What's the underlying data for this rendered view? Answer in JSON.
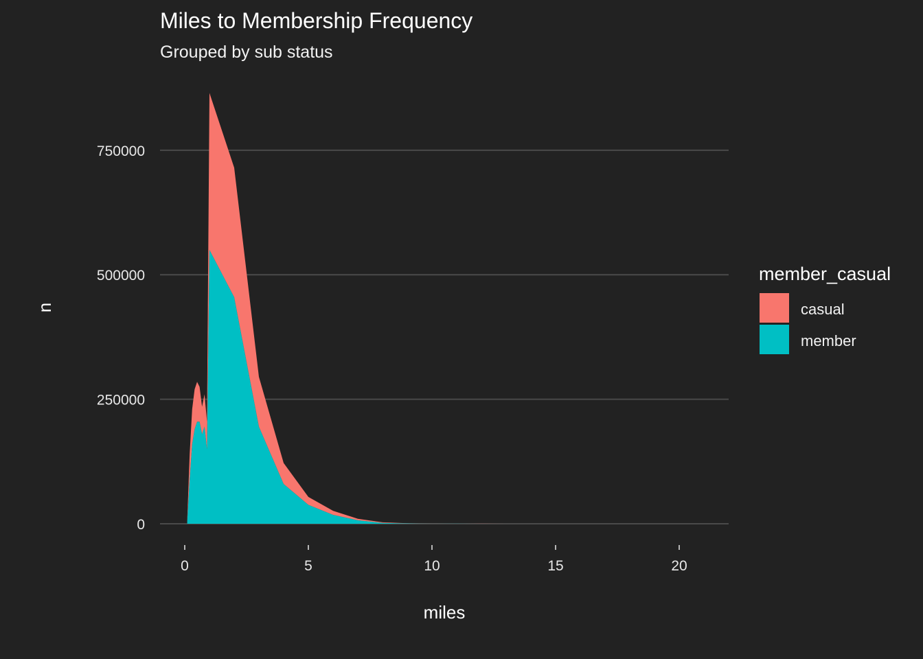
{
  "chart_data": {
    "type": "area",
    "stacked": true,
    "title": "Miles to Membership Frequency",
    "subtitle": "Grouped by sub status",
    "xlabel": "miles",
    "ylabel": "n",
    "xlim": [
      -1,
      22
    ],
    "ylim": [
      0,
      900000
    ],
    "x_ticks": [
      0,
      5,
      10,
      15,
      20
    ],
    "y_ticks": [
      0,
      250000,
      500000,
      750000
    ],
    "grid": "horizontal-major",
    "legend": {
      "title": "member_casual",
      "position": "right",
      "entries": [
        {
          "label": "casual",
          "color": "#F8766D"
        },
        {
          "label": "member",
          "color": "#00BFC4"
        }
      ]
    },
    "x": [
      0.1,
      0.2,
      0.3,
      0.4,
      0.5,
      0.6,
      0.7,
      0.8,
      0.9,
      1.0,
      2.0,
      3.0,
      4.0,
      5.0,
      6.0,
      7.0,
      8.0,
      9.0,
      10.0,
      11.0,
      12.0,
      13.0,
      14.0,
      15.0,
      16.0,
      17.0,
      18.0,
      19.0,
      20.0,
      21.0
    ],
    "series": [
      {
        "name": "member",
        "color": "#00BFC4",
        "values": [
          5000,
          90000,
          160000,
          190000,
          205000,
          205000,
          180000,
          195000,
          150000,
          550000,
          455000,
          195000,
          80000,
          38000,
          18000,
          7000,
          1800,
          600,
          200,
          100,
          60,
          40,
          30,
          20,
          10,
          10,
          5,
          5,
          5,
          0
        ]
      },
      {
        "name": "casual",
        "color": "#F8766D",
        "values": [
          2000,
          50000,
          70000,
          80000,
          80000,
          70000,
          55000,
          65000,
          55000,
          315000,
          260000,
          100000,
          42000,
          16000,
          8000,
          3000,
          1200,
          400,
          150,
          80,
          50,
          30,
          20,
          10,
          10,
          5,
          5,
          5,
          5,
          0
        ]
      }
    ]
  }
}
